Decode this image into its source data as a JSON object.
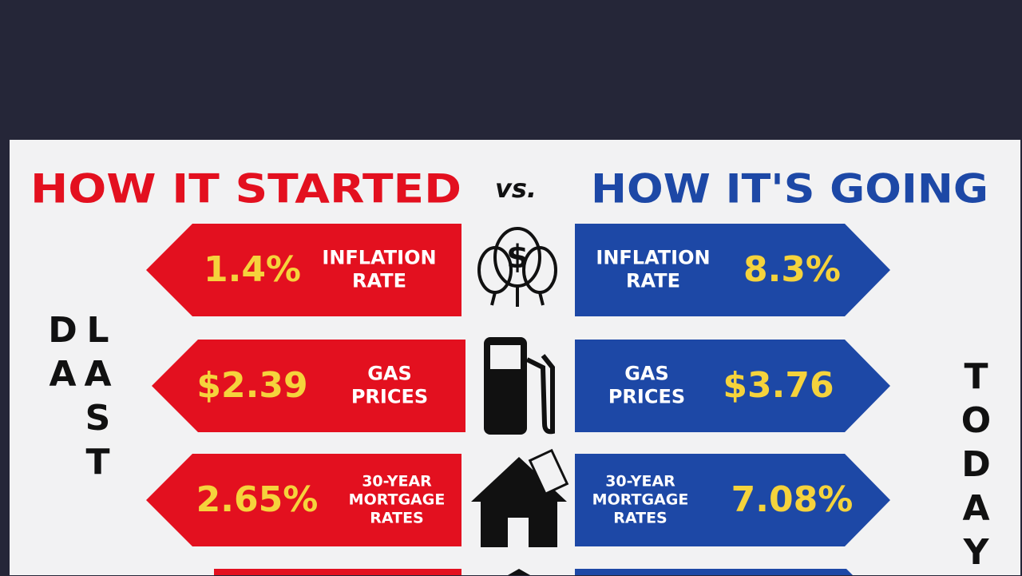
{
  "header": {
    "left_title": "HOW IT STARTED",
    "vs": "vs.",
    "right_title": "HOW IT'S GOING"
  },
  "side_labels": {
    "left": "LAST DA",
    "right": "TODAY"
  },
  "rows": [
    {
      "label": [
        "INFLATION",
        "RATE"
      ],
      "before": "1.4%",
      "after": "8.3%"
    },
    {
      "label": [
        "GAS",
        "PRICES"
      ],
      "before": "$2.39",
      "after": "$3.76"
    },
    {
      "label": [
        "30-YEAR",
        "MORTGAGE",
        "RATES"
      ],
      "before": "2.65%",
      "after": "7.08%"
    }
  ]
}
